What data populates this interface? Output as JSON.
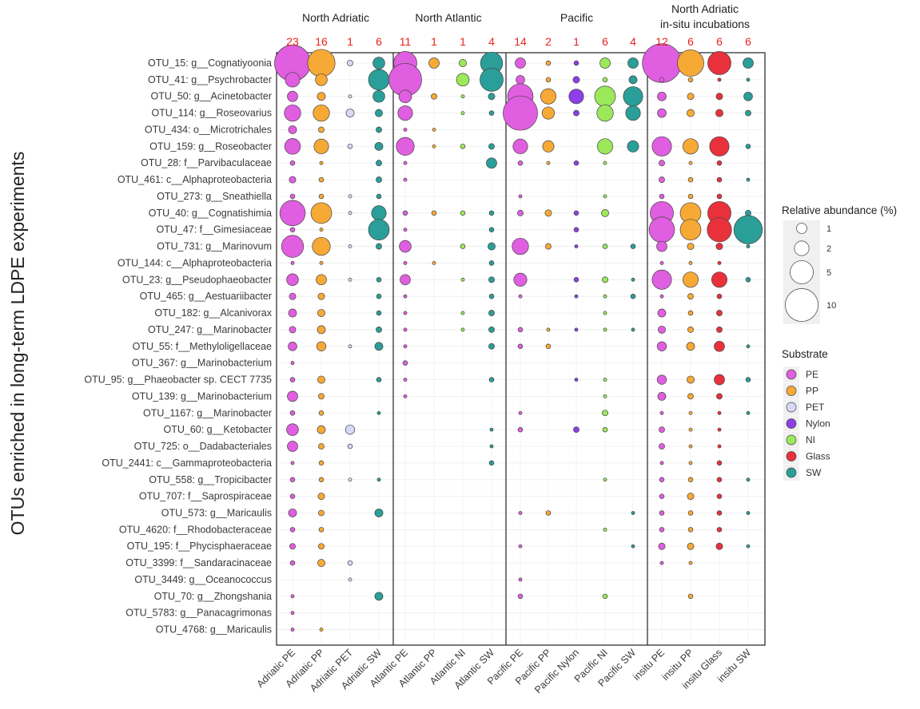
{
  "chart_data": {
    "type": "bubble",
    "ylabel": "OTUs enriched in long-term LDPE experiments",
    "groups": [
      {
        "label": "North Adriatic",
        "columns": [
          0,
          1,
          2,
          3
        ]
      },
      {
        "label": "North Atlantic",
        "columns": [
          4,
          5,
          6,
          7
        ]
      },
      {
        "label": "Pacific",
        "columns": [
          8,
          9,
          10,
          11,
          12
        ]
      },
      {
        "label": "North Adriatic\nin-situ incubations",
        "columns": [
          13,
          14,
          15,
          16
        ]
      }
    ],
    "columns": [
      "Adriatic PE",
      "Adriatic PP",
      "Adriatic PET",
      "Adriatic SW",
      "Atlantic PE",
      "Atlantic PP",
      "Atlantic NI",
      "Atlantic SW",
      "Pacific PE",
      "Pacific PP",
      "Pacific Nylon",
      "Pacific NI",
      "Pacific SW",
      "insitu PE",
      "insitu PP",
      "insitu Glass",
      "insitu SW"
    ],
    "column_substrate": [
      "PE",
      "PP",
      "PET",
      "SW",
      "PE",
      "PP",
      "NI",
      "SW",
      "PE",
      "PP",
      "Nylon",
      "NI",
      "SW",
      "PE",
      "PP",
      "Glass",
      "SW"
    ],
    "counts": [
      "23",
      "16",
      "1",
      "6",
      "11",
      "1",
      "1",
      "4",
      "14",
      "2",
      "1",
      "6",
      "4",
      "12",
      "6",
      "6",
      "6"
    ],
    "rows": [
      "OTU_15: g__Cognatiyoonia",
      "OTU_41: g__Psychrobacter",
      "OTU_50: g__Acinetobacter",
      "OTU_114: g__Roseovarius",
      "OTU_434: o__Microtrichales",
      "OTU_159: g__Roseobacter",
      "OTU_28: f__Parvibaculaceae",
      "OTU_461: c__Alphaproteobacteria",
      "OTU_273: g__Sneathiella",
      "OTU_40: g__Cognatishimia",
      "OTU_47: f__Gimesiaceae",
      "OTU_731: g__Marinovum",
      "OTU_144: c__Alphaproteobacteria",
      "OTU_23: g__Pseudophaeobacter",
      "OTU_465: g__Aestuariibacter",
      "OTU_182: g__Alcanivorax",
      "OTU_247: g__Marinobacter",
      "OTU_55: f__Methyloligellaceae",
      "OTU_367: g__Marinobacterium",
      "OTU_95: g__Phaeobacter sp. CECT 7735",
      "OTU_139: g__Marinobacterium",
      "OTU_1167: g__Marinobacter",
      "OTU_60: g__Ketobacter",
      "OTU_725: o__Dadabacteriales",
      "OTU_2441: c__Gammaproteobacteria",
      "OTU_558: g__Tropicibacter",
      "OTU_707: f__Saprospiraceae",
      "OTU_573: g__Maricaulis",
      "OTU_4620: f__Rhodobacteraceae",
      "OTU_195: f__Phycisphaeraceae",
      "OTU_3399: f__Sandaracinaceae",
      "OTU_3449: g__Oceanococcus",
      "OTU_70: g__Zhongshania",
      "OTU_5783: g__Panacagrimonas",
      "OTU_4768: g__Maricaulis"
    ],
    "values": [
      [
        12,
        7,
        0.3,
        1.3,
        5,
        1,
        0.5,
        4.5,
        1,
        0.2,
        0.2,
        1,
        1,
        14,
        6.5,
        5,
        1
      ],
      [
        2,
        1.3,
        0,
        4,
        10,
        0,
        1.5,
        5,
        0.7,
        0.2,
        0.4,
        0.2,
        0.6,
        0.2,
        0.2,
        0.1,
        0.1
      ],
      [
        1,
        0.6,
        0.1,
        1.3,
        1.5,
        0.3,
        0.1,
        0.4,
        6,
        2.2,
        2,
        4,
        3.5,
        0.7,
        0.4,
        0.4,
        0.7
      ],
      [
        2.5,
        2.5,
        0.6,
        0.5,
        2,
        0,
        0.1,
        0.2,
        11,
        1.4,
        0.3,
        2.5,
        2,
        0.7,
        0.5,
        0.5,
        0.3
      ],
      [
        0.6,
        0.3,
        0,
        0.3,
        0.1,
        0.1,
        0,
        0,
        0,
        0,
        0,
        0,
        0,
        0,
        0,
        0,
        0
      ],
      [
        2.3,
        2,
        0.2,
        0.6,
        3,
        0.1,
        0.2,
        0.3,
        2,
        1.2,
        0,
        2.2,
        1.2,
        3.5,
        2.2,
        3.5,
        0.2
      ],
      [
        0.2,
        0.1,
        0,
        0.3,
        0.1,
        0,
        0,
        1,
        0.2,
        0.1,
        0.2,
        0.1,
        0,
        0.3,
        0.1,
        0.2,
        0
      ],
      [
        0.4,
        0.2,
        0,
        0.3,
        0.1,
        0,
        0,
        0,
        0,
        0,
        0,
        0,
        0,
        0.3,
        0.2,
        0.2,
        0.1
      ],
      [
        0.2,
        0.2,
        0.1,
        0.2,
        0,
        0,
        0,
        0,
        0.1,
        0,
        0,
        0.1,
        0,
        0.2,
        0.2,
        0.2,
        0
      ],
      [
        6,
        4,
        0.1,
        2,
        0.2,
        0.2,
        0.2,
        0.2,
        0.3,
        0.4,
        0.2,
        0.5,
        0,
        5,
        4,
        5,
        0.3
      ],
      [
        0.2,
        0.1,
        0,
        4,
        0.1,
        0,
        0,
        0.2,
        0,
        0,
        0.2,
        0,
        0,
        6,
        4,
        5.5,
        7.5
      ],
      [
        4.5,
        3,
        0.1,
        0.3,
        1.3,
        0,
        0.2,
        0.5,
        2.5,
        0.3,
        0.1,
        0.2,
        0.2,
        1,
        0.4,
        0.4,
        0.1
      ],
      [
        0.1,
        0.1,
        0,
        0,
        0.1,
        0.1,
        0,
        0.2,
        0,
        0,
        0,
        0,
        0,
        0.1,
        0.1,
        0.1,
        0
      ],
      [
        1.3,
        1,
        0.1,
        0.2,
        1,
        0,
        0.1,
        0.3,
        1.6,
        0,
        0.2,
        0.3,
        0.1,
        3.5,
        2.2,
        2.2,
        0.2
      ],
      [
        0.4,
        0.4,
        0,
        0.2,
        0.1,
        0,
        0,
        0.2,
        0.1,
        0,
        0.1,
        0.1,
        0.2,
        0.1,
        0.3,
        0.2,
        0
      ],
      [
        0.6,
        0.5,
        0,
        0.2,
        0.1,
        0,
        0.1,
        0.3,
        0,
        0,
        0,
        0.1,
        0,
        0.6,
        0.2,
        0.3,
        0
      ],
      [
        0.4,
        0.6,
        0,
        0.3,
        0.1,
        0,
        0.1,
        0.3,
        0.2,
        0.1,
        0.1,
        0.1,
        0.1,
        0.5,
        0.3,
        0.3,
        0
      ],
      [
        0.7,
        0.8,
        0.1,
        0.6,
        0.1,
        0,
        0,
        0.3,
        0.2,
        0.2,
        0,
        0,
        0,
        0.8,
        0.6,
        1,
        0.1
      ],
      [
        0.1,
        0,
        0,
        0,
        0.2,
        0,
        0,
        0,
        0,
        0,
        0,
        0,
        0,
        0,
        0,
        0,
        0
      ],
      [
        0.2,
        0.5,
        0,
        0.2,
        0.1,
        0,
        0,
        0.2,
        0,
        0,
        0.1,
        0.1,
        0,
        0.8,
        0.5,
        1,
        0.2
      ],
      [
        1,
        0.3,
        0,
        0,
        0.1,
        0,
        0,
        0,
        0,
        0,
        0,
        0.1,
        0,
        0.6,
        0.3,
        0.3,
        0
      ],
      [
        0.2,
        0.2,
        0,
        0.1,
        0,
        0,
        0,
        0,
        0.1,
        0,
        0,
        0.3,
        0,
        0.1,
        0.1,
        0.1,
        0.1
      ],
      [
        1.3,
        0.6,
        0.8,
        0,
        0,
        0,
        0,
        0.1,
        0.2,
        0,
        0.3,
        0.2,
        0,
        0.3,
        0.1,
        0.1,
        0
      ],
      [
        1,
        0.3,
        0.2,
        0,
        0,
        0,
        0,
        0.1,
        0,
        0,
        0,
        0,
        0,
        0.3,
        0.1,
        0.1,
        0
      ],
      [
        0.1,
        0.2,
        0,
        0,
        0,
        0,
        0,
        0.2,
        0,
        0,
        0,
        0,
        0,
        0.1,
        0.1,
        0.2,
        0
      ],
      [
        0.2,
        0.2,
        0.1,
        0.1,
        0,
        0,
        0,
        0,
        0,
        0,
        0,
        0.1,
        0,
        0.2,
        0.2,
        0.2,
        0.1
      ],
      [
        0.2,
        0.4,
        0,
        0,
        0,
        0,
        0,
        0,
        0,
        0,
        0,
        0,
        0,
        0.2,
        0.4,
        0.2,
        0
      ],
      [
        0.6,
        0.3,
        0,
        0.6,
        0,
        0,
        0,
        0,
        0.1,
        0.2,
        0,
        0,
        0.1,
        0.2,
        0.2,
        0.2,
        0.1
      ],
      [
        0.2,
        0.2,
        0,
        0,
        0,
        0,
        0,
        0,
        0,
        0,
        0,
        0.1,
        0,
        0.2,
        0.2,
        0.2,
        0
      ],
      [
        0.3,
        0.3,
        0,
        0,
        0,
        0,
        0,
        0,
        0.1,
        0,
        0,
        0,
        0.1,
        0.4,
        0.4,
        0.4,
        0.1
      ],
      [
        0.2,
        0.5,
        0.2,
        0,
        0,
        0,
        0,
        0,
        0,
        0,
        0,
        0,
        0,
        0.1,
        0.1,
        0,
        0
      ],
      [
        0,
        0,
        0.1,
        0,
        0,
        0,
        0,
        0,
        0.1,
        0,
        0,
        0,
        0,
        0,
        0,
        0,
        0
      ],
      [
        0.1,
        0,
        0,
        0.6,
        0,
        0,
        0,
        0,
        0.2,
        0,
        0,
        0.2,
        0,
        0,
        0.2,
        0,
        0
      ],
      [
        0.1,
        0,
        0,
        0,
        0,
        0,
        0,
        0,
        0,
        0,
        0,
        0,
        0,
        0,
        0,
        0,
        0
      ],
      [
        0.1,
        0.1,
        0,
        0,
        0,
        0,
        0,
        0,
        0,
        0,
        0,
        0,
        0,
        0,
        0,
        0,
        0
      ]
    ],
    "size_legend": {
      "title": "Relative abundance (%)",
      "values": [
        1,
        2,
        5,
        10
      ]
    },
    "color_legend": {
      "title": "Substrate",
      "items": [
        {
          "label": "PE",
          "color": "#e05ee0"
        },
        {
          "label": "PP",
          "color": "#f7a935"
        },
        {
          "label": "PET",
          "color": "#d8d8f7"
        },
        {
          "label": "Nylon",
          "color": "#8d3ee6"
        },
        {
          "label": "NI",
          "color": "#9be85a"
        },
        {
          "label": "Glass",
          "color": "#e8313b"
        },
        {
          "label": "SW",
          "color": "#2a9e98"
        }
      ]
    },
    "count_color": "#e8231c",
    "grid": true
  }
}
